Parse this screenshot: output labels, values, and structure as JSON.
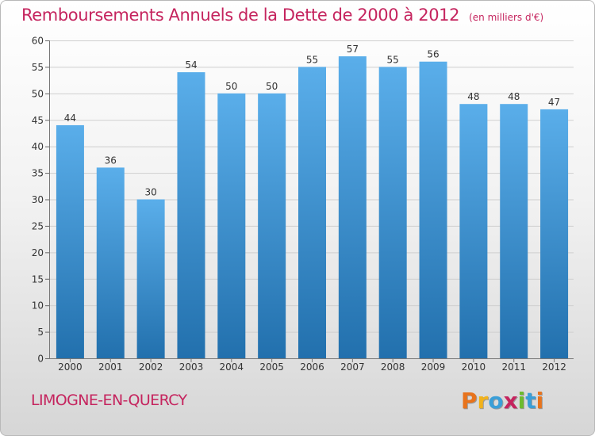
{
  "header": {
    "title": "Remboursements Annuels de la Dette de 2000 à 2012",
    "unit": "(en milliers d'€)"
  },
  "footer": {
    "town": "LIMOGNE-EN-QUERCY",
    "brand": "Proxiti",
    "brand_colors": [
      "#e8731c",
      "#f2b21a",
      "#3a9fd8",
      "#c5245e",
      "#6dbb2e",
      "#3a9fd8",
      "#e8731c"
    ]
  },
  "colors": {
    "title": "#c5245e",
    "bar_top": "#5aaeea",
    "bar_bottom": "#2270ad"
  },
  "chart_data": {
    "type": "bar",
    "title": "Remboursements Annuels de la Dette de 2000 à 2012",
    "subtitle": "(en milliers d'€)",
    "xlabel": "",
    "ylabel": "",
    "categories": [
      "2000",
      "2001",
      "2002",
      "2003",
      "2004",
      "2005",
      "2006",
      "2007",
      "2008",
      "2009",
      "2010",
      "2011",
      "2012"
    ],
    "values": [
      44,
      36,
      30,
      54,
      50,
      50,
      55,
      57,
      55,
      56,
      48,
      48,
      47
    ],
    "ylim": [
      0,
      60
    ],
    "yticks": [
      0,
      5,
      10,
      15,
      20,
      25,
      30,
      35,
      40,
      45,
      50,
      55,
      60
    ],
    "grid": "horizontal",
    "data_labels": true
  }
}
